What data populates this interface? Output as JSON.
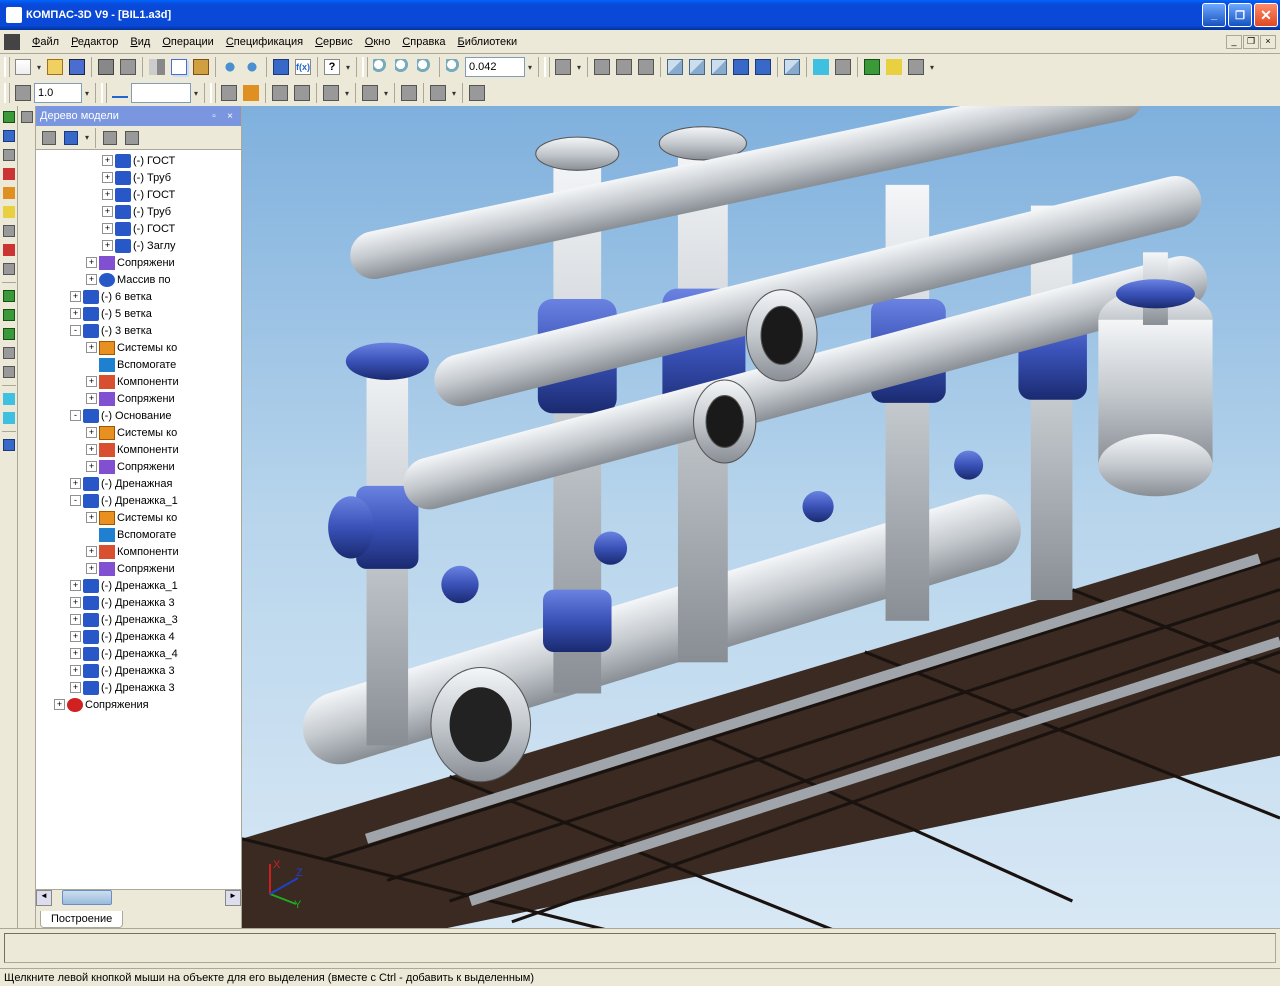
{
  "window": {
    "title": "КОМПАС-3D V9 - [BIL1.a3d]"
  },
  "menubar": {
    "items": [
      "Файл",
      "Редактор",
      "Вид",
      "Операции",
      "Спецификация",
      "Сервис",
      "Окно",
      "Справка",
      "Библиотеки"
    ]
  },
  "toolbar1": {
    "zoom_value": "0.042",
    "fx_label": "f(x)",
    "help_label": "?"
  },
  "toolbar2": {
    "scale_value": "1.0"
  },
  "tree_panel": {
    "title": "Дерево модели",
    "tab": "Построение",
    "nodes": [
      {
        "depth": 4,
        "exp": "+",
        "icon": "ic-part",
        "label": "(-) ГОСТ"
      },
      {
        "depth": 4,
        "exp": "+",
        "icon": "ic-part",
        "label": "(-) Труб"
      },
      {
        "depth": 4,
        "exp": "+",
        "icon": "ic-part",
        "label": "(-) ГОСТ"
      },
      {
        "depth": 4,
        "exp": "+",
        "icon": "ic-part",
        "label": "(-) Труб"
      },
      {
        "depth": 4,
        "exp": "+",
        "icon": "ic-part",
        "label": "(-) ГОСТ"
      },
      {
        "depth": 4,
        "exp": "+",
        "icon": "ic-part",
        "label": "(-) Заглу"
      },
      {
        "depth": 3,
        "exp": "+",
        "icon": "ic-mate",
        "label": "Сопряжени"
      },
      {
        "depth": 3,
        "exp": "+",
        "icon": "ic-arr",
        "label": "Массив по"
      },
      {
        "depth": 2,
        "exp": "+",
        "icon": "ic-part",
        "label": "(-) 6 ветка"
      },
      {
        "depth": 2,
        "exp": "+",
        "icon": "ic-part",
        "label": "(-) 5 ветка"
      },
      {
        "depth": 2,
        "exp": "-",
        "icon": "ic-part",
        "label": "(-) 3 ветка"
      },
      {
        "depth": 3,
        "exp": "+",
        "icon": "ic-sys",
        "label": "Системы ко"
      },
      {
        "depth": 3,
        "exp": "",
        "icon": "ic-aux",
        "label": "Вспомогате"
      },
      {
        "depth": 3,
        "exp": "+",
        "icon": "ic-comp",
        "label": "Компоненти"
      },
      {
        "depth": 3,
        "exp": "+",
        "icon": "ic-mate",
        "label": "Сопряжени"
      },
      {
        "depth": 2,
        "exp": "-",
        "icon": "ic-part",
        "label": "(-) Основание"
      },
      {
        "depth": 3,
        "exp": "+",
        "icon": "ic-sys",
        "label": "Системы ко"
      },
      {
        "depth": 3,
        "exp": "+",
        "icon": "ic-comp",
        "label": "Компоненти"
      },
      {
        "depth": 3,
        "exp": "+",
        "icon": "ic-mate",
        "label": "Сопряжени"
      },
      {
        "depth": 2,
        "exp": "+",
        "icon": "ic-part",
        "label": "(-) Дренажная"
      },
      {
        "depth": 2,
        "exp": "-",
        "icon": "ic-part",
        "label": "(-) Дренажка_1"
      },
      {
        "depth": 3,
        "exp": "+",
        "icon": "ic-sys",
        "label": "Системы ко"
      },
      {
        "depth": 3,
        "exp": "",
        "icon": "ic-aux",
        "label": "Вспомогате"
      },
      {
        "depth": 3,
        "exp": "+",
        "icon": "ic-comp",
        "label": "Компоненти"
      },
      {
        "depth": 3,
        "exp": "+",
        "icon": "ic-mate",
        "label": "Сопряжени"
      },
      {
        "depth": 2,
        "exp": "+",
        "icon": "ic-part",
        "label": "(-) Дренажка_1"
      },
      {
        "depth": 2,
        "exp": "+",
        "icon": "ic-part",
        "label": "(-) Дренажка 3"
      },
      {
        "depth": 2,
        "exp": "+",
        "icon": "ic-part",
        "label": "(-) Дренажка_3"
      },
      {
        "depth": 2,
        "exp": "+",
        "icon": "ic-part",
        "label": "(-) Дренажка 4"
      },
      {
        "depth": 2,
        "exp": "+",
        "icon": "ic-part",
        "label": "(-) Дренажка_4"
      },
      {
        "depth": 2,
        "exp": "+",
        "icon": "ic-part",
        "label": "(-) Дренажка 3"
      },
      {
        "depth": 2,
        "exp": "+",
        "icon": "ic-part",
        "label": "(-) Дренажка 3"
      },
      {
        "depth": 1,
        "exp": "+",
        "icon": "ic-sopr",
        "label": "Сопряжения"
      }
    ]
  },
  "statusbar": {
    "text": "Щелкните левой кнопкой мыши на объекте для его выделения (вместе с Ctrl - добавить к выделенным)"
  },
  "viewport": {
    "sky_top": "#7fb0dd",
    "sky_bottom": "#d8e8f5",
    "floor_color": "#3a2a22",
    "pipe_color": "#c4c9ce",
    "valve_color": "#3a52b8",
    "axis": {
      "x": "#cc2020",
      "y": "#20aa20",
      "z": "#2040cc"
    }
  }
}
